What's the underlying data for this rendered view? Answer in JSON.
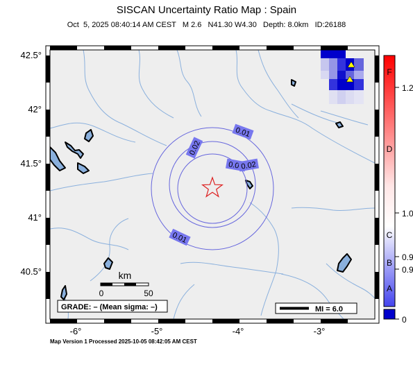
{
  "header": {
    "title": "SISCAN Uncertainty Ratio Map : Spain",
    "subtitle": "Oct  5, 2025 08:40:14 AM CEST   M 2.6   N41.30 W4.30   Depth: 8.0km   ID:26188"
  },
  "map": {
    "lat_labels": [
      "42.5°",
      "42°",
      "41.5°",
      "41°",
      "40.5°"
    ],
    "lon_labels": [
      "-6°",
      "-5°",
      "-4°",
      "-3°"
    ],
    "contour_labels": [
      "0.01",
      "0.02",
      "0.03",
      "0.02",
      "0.01"
    ],
    "epicenter": {
      "lat": 41.3,
      "lon": -4.3,
      "marker": "star-icon"
    },
    "stations_marker": "triangle-icon",
    "scale_bar": {
      "title": "km",
      "start": "0",
      "end": "50"
    },
    "grade_text": "GRADE: – (Mean sigma: –)",
    "legend_text": "MI = 6.0"
  },
  "colorbar": {
    "letters": [
      "F",
      "D",
      "C",
      "B",
      "A"
    ],
    "values": [
      "1.2",
      "1.0",
      "0.9",
      "0.9",
      "0"
    ],
    "colors": {
      "top": "#ff0000",
      "mid": "#ffffff",
      "bottom": "#0000cc"
    }
  },
  "footer": {
    "text": "Map Version 1 Processed 2025-10-05 08:42:05 AM CEST"
  },
  "colors": {
    "land": "#eeeeee",
    "river": "#8ab0dd",
    "contour": "#6666dd",
    "contour_label_bg": "#7777ee",
    "star": "#dd2222",
    "station": "#ffff00"
  }
}
